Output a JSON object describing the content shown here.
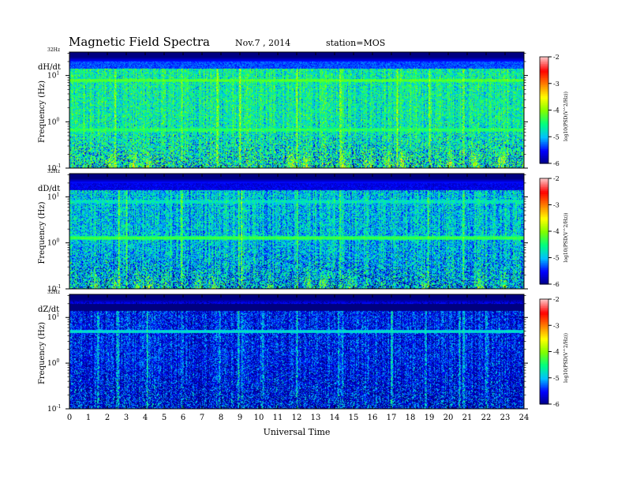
{
  "header": {
    "title": "Magnetic  Field  Spectra",
    "date": "Nov.7  , 2014",
    "station": "station=MOS"
  },
  "chart_data": {
    "type": "heatmap",
    "xlabel": "Universal Time",
    "xlim": [
      0,
      24
    ],
    "x_ticks": [
      "0",
      "1",
      "2",
      "3",
      "4",
      "5",
      "6",
      "7",
      "8",
      "9",
      "10",
      "11",
      "12",
      "13",
      "14",
      "15",
      "16",
      "17",
      "18",
      "19",
      "20",
      "21",
      "22",
      "23",
      "24"
    ],
    "top_frequency_label": "32Hz",
    "colorbar": {
      "range": [
        -6,
        -2
      ],
      "ticks": [
        "-2",
        "-3",
        "-4",
        "-5",
        "-6"
      ],
      "label": "log10(PSD(V^2/Hz))",
      "colormap": [
        "#000080",
        "#0000ff",
        "#00c0ff",
        "#00ff80",
        "#80ff00",
        "#ffff00",
        "#ff8000",
        "#ff0000",
        "#ffc0c0"
      ]
    },
    "panels": [
      {
        "component": "dH/dt",
        "ylabel": "Frequency (Hz)",
        "y_scale": "log",
        "ylim": [
          0.1,
          32
        ],
        "y_ticks": [
          "10^1",
          "10^0",
          "10^-1"
        ],
        "features": {
          "background_level": -4.6,
          "narrowband_lines": [
            {
              "frequency_hz": 8.0,
              "level": -4.1
            },
            {
              "frequency_hz": 0.68,
              "level": -4.3
            }
          ],
          "low_frequency_bursts_ut": [
            2.2,
            3.4,
            4.1,
            11.7,
            12.5,
            14.5,
            15.8,
            16.8,
            17.6,
            20.1,
            21.4,
            22.8
          ],
          "broadband_impulses_ut": [
            2.4,
            5.9,
            7.8,
            9.0,
            12.0,
            14.3,
            17.3,
            19.0,
            20.8
          ]
        }
      },
      {
        "component": "dD/dt",
        "ylabel": "Frequency (Hz)",
        "y_scale": "log",
        "ylim": [
          0.1,
          32
        ],
        "y_ticks": [
          "10^1",
          "10^0",
          "10^-1"
        ],
        "features": {
          "background_level": -4.9,
          "narrowband_lines": [
            {
              "frequency_hz": 8.0,
              "level": -4.7
            },
            {
              "frequency_hz": 1.3,
              "level": -4.2
            }
          ],
          "low_frequency_bursts_ut": [
            1.3,
            2.4,
            3.6,
            4.2,
            5.0,
            6.8,
            7.6,
            10.5,
            12.6,
            13.4,
            14.8,
            18.7,
            21.6,
            22.9
          ],
          "broadband_impulses_ut": [
            2.6,
            3.0,
            5.9,
            8.9,
            9.1,
            12.0,
            14.3,
            18.9,
            20.8
          ]
        }
      },
      {
        "component": "dZ/dt",
        "ylabel": "Frequency (Hz)",
        "y_scale": "log",
        "ylim": [
          0.1,
          32
        ],
        "y_ticks": [
          "10^1",
          "10^0",
          "10^-1"
        ],
        "features": {
          "background_level": -5.5,
          "narrowband_lines": [
            {
              "frequency_hz": 5.0,
              "level": -4.7
            }
          ],
          "low_frequency_bursts_ut": [],
          "broadband_impulses_ut": [
            1.5,
            2.5,
            2.6,
            4.1,
            5.9,
            7.9,
            8.9,
            9.1,
            10.2,
            12.0,
            14.2,
            14.4,
            17.0,
            18.8,
            20.6,
            20.8,
            22.0
          ]
        }
      }
    ]
  }
}
